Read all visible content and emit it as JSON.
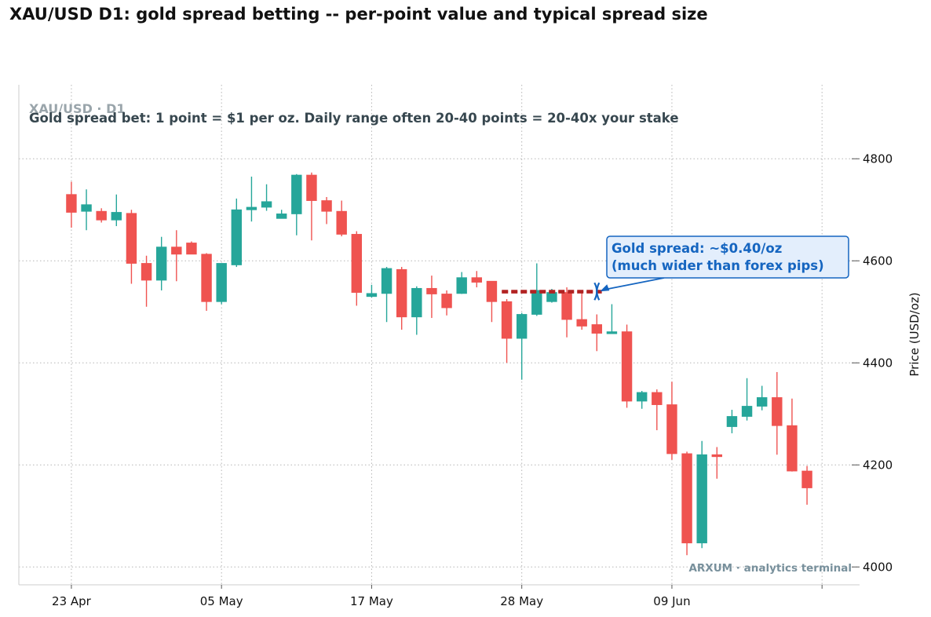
{
  "page": {
    "title": "XAU/USD D1: gold spread betting -- per-point value and typical spread size"
  },
  "colors": {
    "up": "#26a69a",
    "down": "#ef5350",
    "spread_line": "#b22222",
    "annotation_text": "#1565c0",
    "annotation_bg": "#e3eefc",
    "annotation_border": "#1565c0",
    "subtitle": "#37474f",
    "instrument_tag": "#9aa5ab",
    "watermark": "#78909c"
  },
  "chart_data": {
    "type": "candlestick",
    "instrument_label": "XAU/USD · D1",
    "note": "Gold spread bet: 1 point = $1 per oz. Daily range often 20-40 points = 20-40x your stake",
    "ylabel": "Price (USD/oz)",
    "xlabel": "",
    "ylim": [
      3965,
      4945
    ],
    "yticks": [
      4000,
      4200,
      4400,
      4600,
      4800
    ],
    "x_tick_labels": [
      {
        "index": 0,
        "label": "23 Apr"
      },
      {
        "index": 10,
        "label": "05 May"
      },
      {
        "index": 20,
        "label": "17 May"
      },
      {
        "index": 30,
        "label": "28 May"
      },
      {
        "index": 40,
        "label": "09 Jun"
      },
      {
        "index": 50,
        "label": ""
      }
    ],
    "x_range": [
      -3.5,
      52.5
    ],
    "grid": true,
    "candles": [
      {
        "o": 4730,
        "h": 4755,
        "l": 4665,
        "c": 4695
      },
      {
        "o": 4697,
        "h": 4740,
        "l": 4660,
        "c": 4710
      },
      {
        "o": 4697,
        "h": 4703,
        "l": 4675,
        "c": 4680
      },
      {
        "o": 4680,
        "h": 4730,
        "l": 4668,
        "c": 4695
      },
      {
        "o": 4693,
        "h": 4700,
        "l": 4555,
        "c": 4595
      },
      {
        "o": 4595,
        "h": 4610,
        "l": 4510,
        "c": 4562
      },
      {
        "o": 4562,
        "h": 4647,
        "l": 4542,
        "c": 4627
      },
      {
        "o": 4627,
        "h": 4660,
        "l": 4560,
        "c": 4613
      },
      {
        "o": 4635,
        "h": 4638,
        "l": 4613,
        "c": 4613
      },
      {
        "o": 4613,
        "h": 4615,
        "l": 4502,
        "c": 4520
      },
      {
        "o": 4520,
        "h": 4595,
        "l": 4515,
        "c": 4595
      },
      {
        "o": 4592,
        "h": 4722,
        "l": 4588,
        "c": 4700
      },
      {
        "o": 4700,
        "h": 4765,
        "l": 4677,
        "c": 4705
      },
      {
        "o": 4705,
        "h": 4750,
        "l": 4698,
        "c": 4716
      },
      {
        "o": 4683,
        "h": 4700,
        "l": 4683,
        "c": 4692
      },
      {
        "o": 4692,
        "h": 4770,
        "l": 4650,
        "c": 4768
      },
      {
        "o": 4768,
        "h": 4773,
        "l": 4640,
        "c": 4718
      },
      {
        "o": 4718,
        "h": 4725,
        "l": 4672,
        "c": 4697
      },
      {
        "o": 4697,
        "h": 4718,
        "l": 4648,
        "c": 4652
      },
      {
        "o": 4652,
        "h": 4658,
        "l": 4512,
        "c": 4538
      },
      {
        "o": 4530,
        "h": 4553,
        "l": 4528,
        "c": 4536
      },
      {
        "o": 4536,
        "h": 4588,
        "l": 4480,
        "c": 4585
      },
      {
        "o": 4583,
        "h": 4588,
        "l": 4465,
        "c": 4490
      },
      {
        "o": 4490,
        "h": 4550,
        "l": 4455,
        "c": 4546
      },
      {
        "o": 4546,
        "h": 4571,
        "l": 4488,
        "c": 4535
      },
      {
        "o": 4535,
        "h": 4542,
        "l": 4493,
        "c": 4508
      },
      {
        "o": 4536,
        "h": 4578,
        "l": 4535,
        "c": 4567
      },
      {
        "o": 4567,
        "h": 4580,
        "l": 4548,
        "c": 4558
      },
      {
        "o": 4560,
        "h": 4560,
        "l": 4480,
        "c": 4520
      },
      {
        "o": 4520,
        "h": 4525,
        "l": 4400,
        "c": 4448
      },
      {
        "o": 4448,
        "h": 4498,
        "l": 4367,
        "c": 4495
      },
      {
        "o": 4495,
        "h": 4595,
        "l": 4492,
        "c": 4542
      },
      {
        "o": 4520,
        "h": 4545,
        "l": 4518,
        "c": 4538
      },
      {
        "o": 4538,
        "h": 4548,
        "l": 4450,
        "c": 4485
      },
      {
        "o": 4485,
        "h": 4540,
        "l": 4465,
        "c": 4472
      },
      {
        "o": 4475,
        "h": 4495,
        "l": 4423,
        "c": 4458
      },
      {
        "o": 4458,
        "h": 4515,
        "l": 4458,
        "c": 4461
      },
      {
        "o": 4461,
        "h": 4475,
        "l": 4312,
        "c": 4325
      },
      {
        "o": 4325,
        "h": 4345,
        "l": 4310,
        "c": 4342
      },
      {
        "o": 4342,
        "h": 4348,
        "l": 4268,
        "c": 4318
      },
      {
        "o": 4318,
        "h": 4363,
        "l": 4210,
        "c": 4222
      },
      {
        "o": 4222,
        "h": 4226,
        "l": 4023,
        "c": 4047
      },
      {
        "o": 4047,
        "h": 4247,
        "l": 4037,
        "c": 4220
      },
      {
        "o": 4220,
        "h": 4235,
        "l": 4173,
        "c": 4218
      },
      {
        "o": 4275,
        "h": 4308,
        "l": 4262,
        "c": 4295
      },
      {
        "o": 4295,
        "h": 4370,
        "l": 4287,
        "c": 4315
      },
      {
        "o": 4315,
        "h": 4355,
        "l": 4307,
        "c": 4332
      },
      {
        "o": 4332,
        "h": 4382,
        "l": 4220,
        "c": 4277
      },
      {
        "o": 4277,
        "h": 4330,
        "l": 4187,
        "c": 4188
      },
      {
        "o": 4188,
        "h": 4198,
        "l": 4122,
        "c": 4155
      }
    ],
    "spread_marker": {
      "from_index": 29,
      "to_index": 35,
      "bid": 4538,
      "ask": 4541
    },
    "annotation": {
      "lines": [
        "Gold spread: ~$0.40/oz",
        "(much wider than forex pips)"
      ],
      "points_to": {
        "index": 35,
        "price": 4540
      }
    },
    "watermark": "ARXUM · analytics terminal"
  }
}
